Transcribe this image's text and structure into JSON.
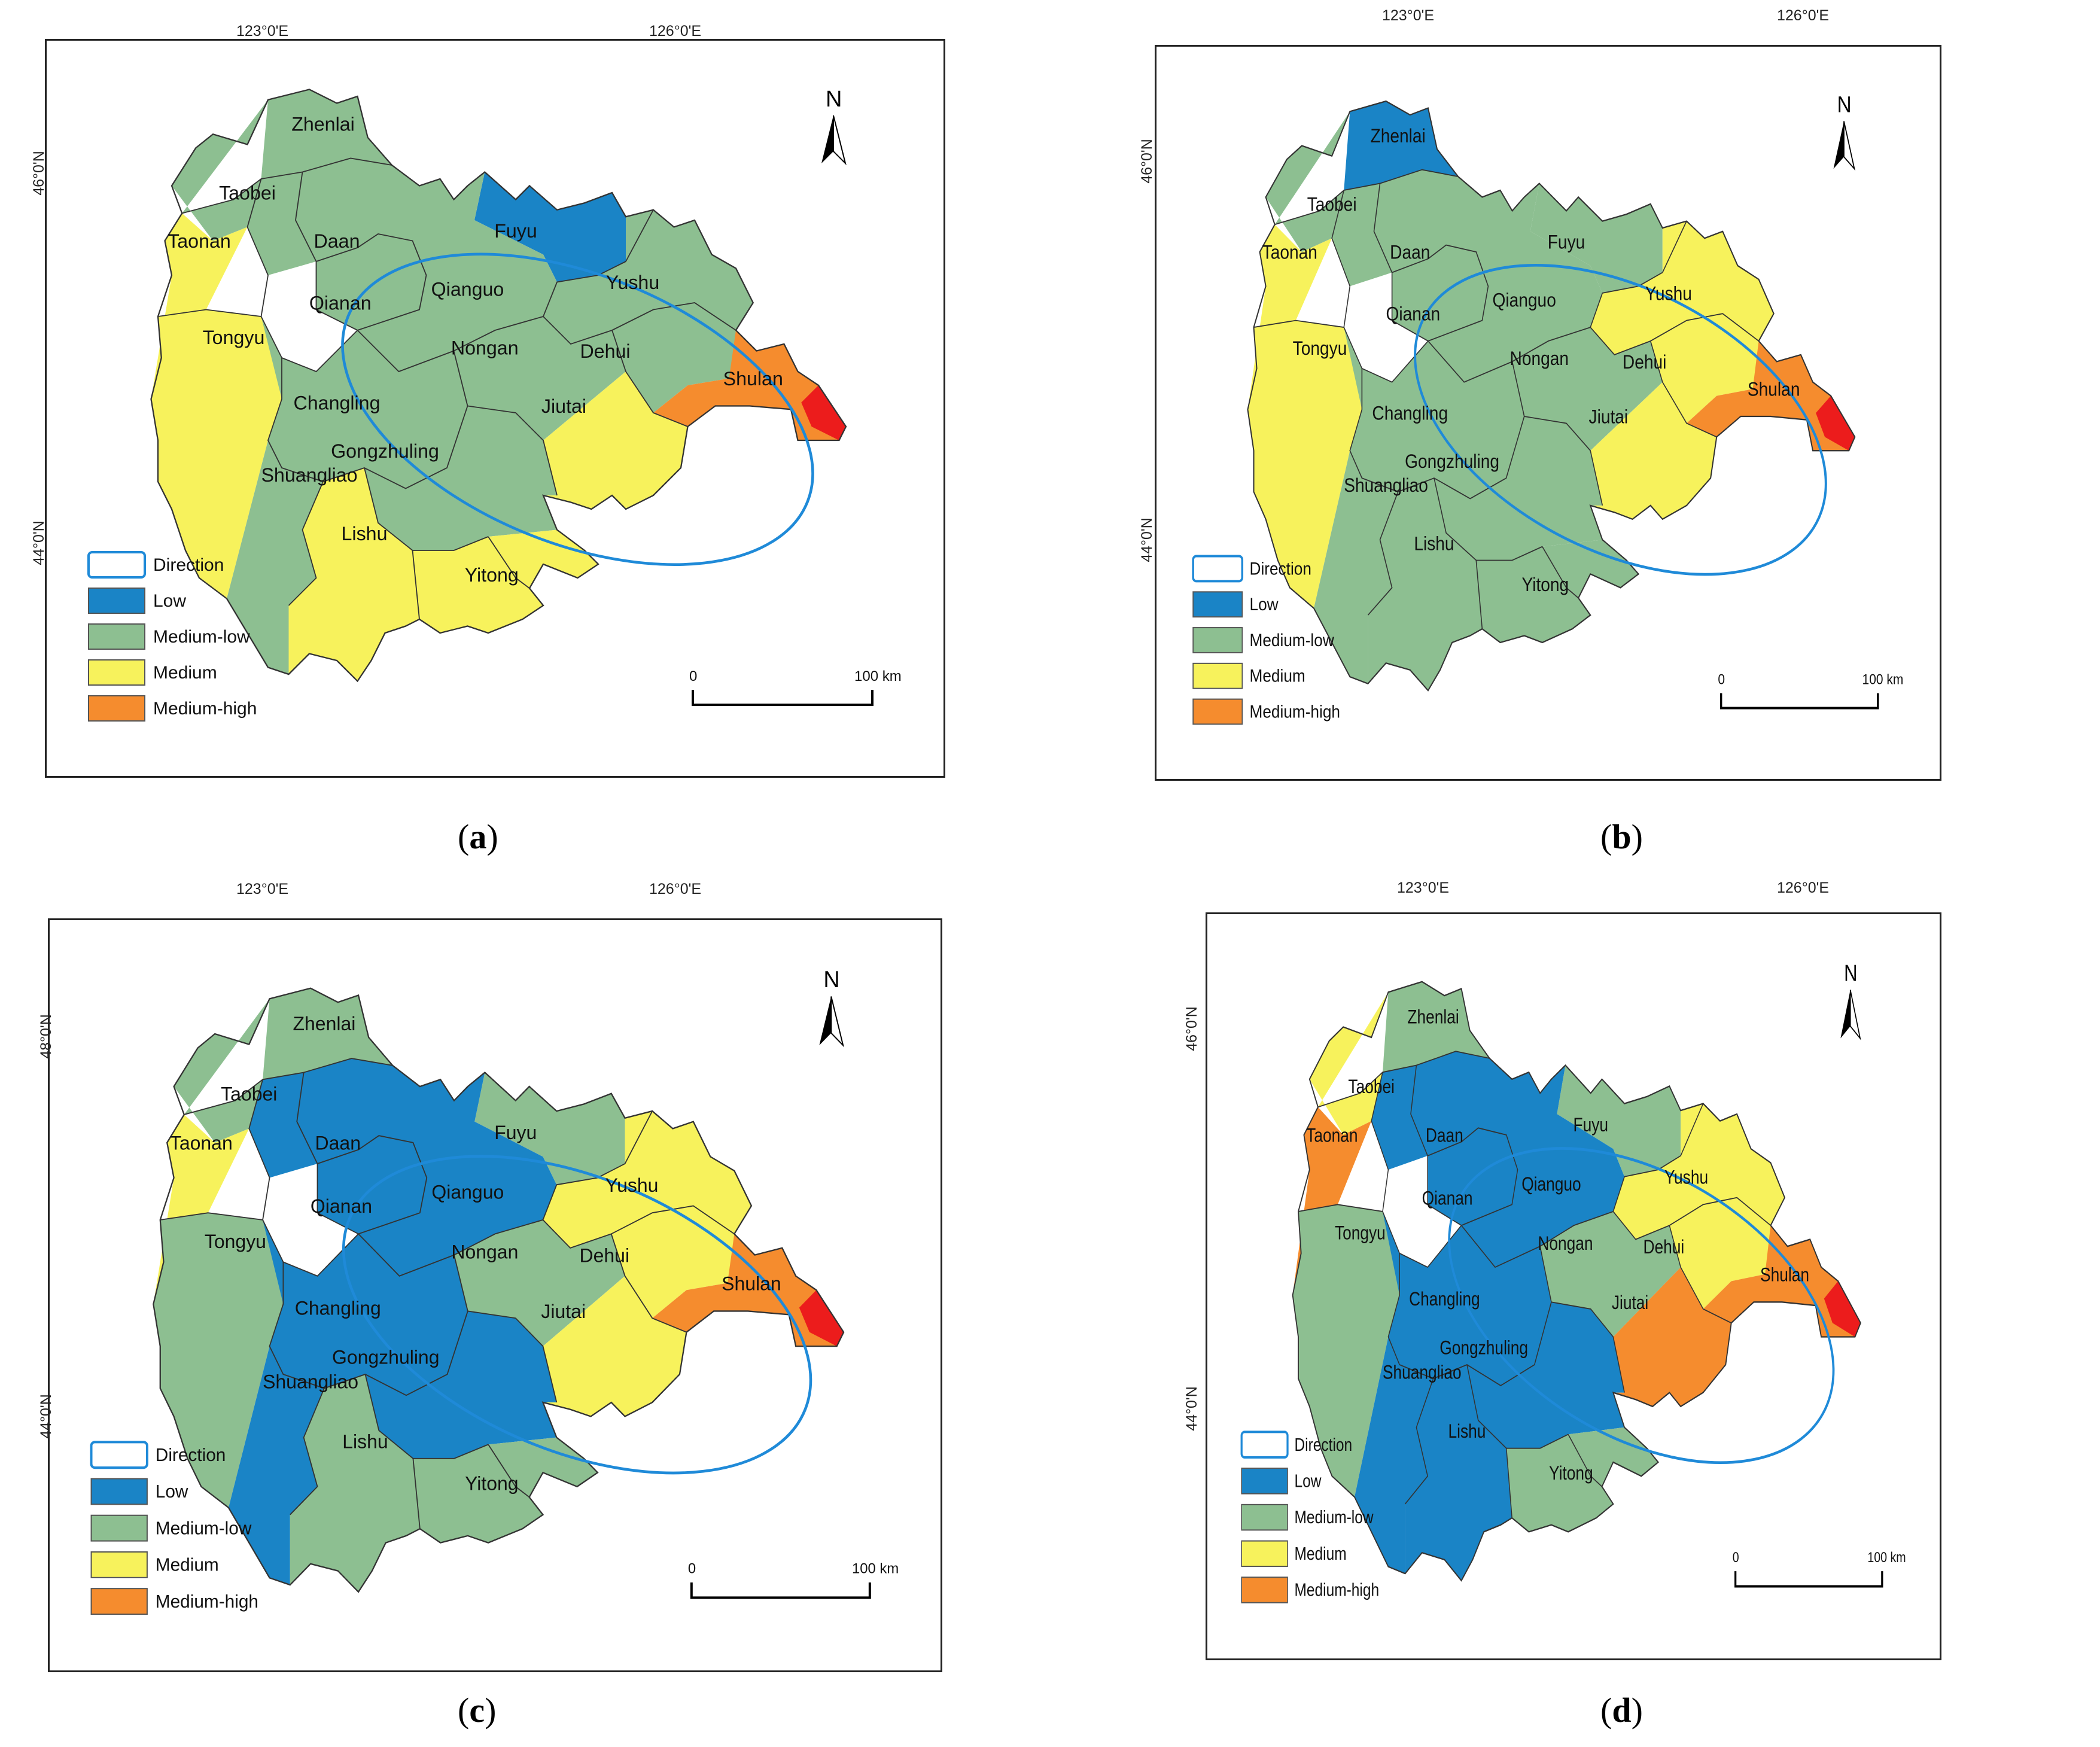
{
  "colors": {
    "low": "#1a84c6",
    "medium_low": "#8dbf91",
    "medium": "#f7f25c",
    "medium_high": "#f58c2e",
    "high": "#ec1c1c",
    "direction": "#1f8ad8",
    "boundary": "#333333"
  },
  "legend": {
    "direction": "Direction",
    "low": "Low",
    "medium_low": "Medium-low",
    "medium": "Medium",
    "medium_high": "Medium-high"
  },
  "north_label": "N",
  "scale": {
    "zero": "0",
    "length": "100 km"
  },
  "counties": [
    "Zhenlai",
    "Taobei",
    "Taonan",
    "Daan",
    "Fuyu",
    "Qianan",
    "Qianguo",
    "Yushu",
    "Tongyu",
    "Nongan",
    "Dehui",
    "Changling",
    "Jiutai",
    "Shulan",
    "Gongzhuling",
    "Shuangliao",
    "Lishu",
    "Yitong"
  ],
  "panels": [
    {
      "id": "a",
      "caption": "a",
      "lon_labels": [
        "123°0'E",
        "126°0'E"
      ],
      "lat_labels": [
        "46°0'N",
        "44°0'N"
      ],
      "classes": {
        "Zhenlai": "medium_low",
        "Taobei": "medium_low",
        "Taonan": "medium",
        "Daan": "medium_low",
        "Fuyu": "low",
        "Qianan": "medium_low",
        "Qianguo": "medium_low",
        "Yushu": "medium_low",
        "Tongyu": "medium",
        "Nongan": "medium_low",
        "Dehui": "medium_low",
        "Changling": "medium_low",
        "Jiutai": "medium",
        "Shulan": "medium_high",
        "Gongzhuling": "medium_low",
        "Shuangliao": "medium_low",
        "Lishu": "medium",
        "Yitong": "medium"
      }
    },
    {
      "id": "b",
      "caption": "b",
      "lon_labels": [
        "123°0'E",
        "126°0'E"
      ],
      "lat_labels": [
        "46°0'N",
        "44°0'N"
      ],
      "classes": {
        "Zhenlai": "low",
        "Taobei": "medium_low",
        "Taonan": "medium",
        "Daan": "medium_low",
        "Fuyu": "medium_low",
        "Qianan": "medium_low",
        "Qianguo": "medium_low",
        "Yushu": "medium",
        "Tongyu": "medium",
        "Nongan": "medium_low",
        "Dehui": "medium",
        "Changling": "medium_low",
        "Jiutai": "medium",
        "Shulan": "medium_high",
        "Gongzhuling": "medium_low",
        "Shuangliao": "medium_low",
        "Lishu": "medium_low",
        "Yitong": "medium_low"
      }
    },
    {
      "id": "c",
      "caption": "c",
      "lon_labels": [
        "123°0'E",
        "126°0'E"
      ],
      "lat_labels": [
        "48°0'N",
        "44°0'N"
      ],
      "classes": {
        "Zhenlai": "medium_low",
        "Taobei": "medium_low",
        "Taonan": "medium",
        "Daan": "low",
        "Fuyu": "medium_low",
        "Qianan": "low",
        "Qianguo": "low",
        "Yushu": "medium",
        "Tongyu": "medium_low",
        "Nongan": "medium_low",
        "Dehui": "medium",
        "Changling": "low",
        "Jiutai": "medium",
        "Shulan": "medium_high",
        "Gongzhuling": "low",
        "Shuangliao": "low",
        "Lishu": "medium_low",
        "Yitong": "medium_low"
      }
    },
    {
      "id": "d",
      "caption": "d",
      "lon_labels": [
        "123°0'E",
        "126°0'E"
      ],
      "lat_labels": [
        "46°0'N",
        "44°0'N"
      ],
      "classes": {
        "Zhenlai": "medium_low",
        "Taobei": "medium",
        "Taonan": "medium_high",
        "Daan": "low",
        "Fuyu": "medium_low",
        "Qianan": "low",
        "Qianguo": "low",
        "Yushu": "medium",
        "Tongyu": "medium_low",
        "Nongan": "medium_low",
        "Dehui": "medium",
        "Changling": "low",
        "Jiutai": "medium_high",
        "Shulan": "medium_high",
        "Gongzhuling": "low",
        "Shuangliao": "low",
        "Lishu": "low",
        "Yitong": "medium_low"
      }
    }
  ]
}
